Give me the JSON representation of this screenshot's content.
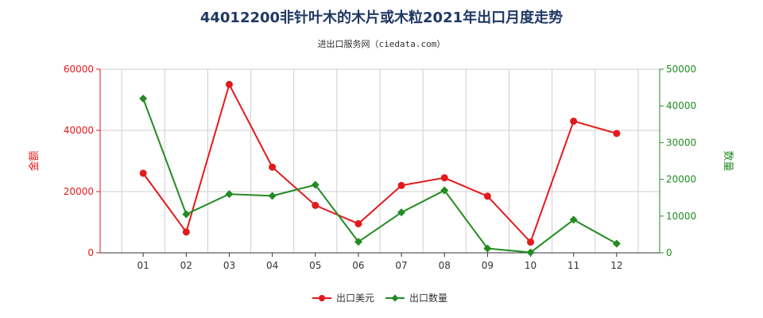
{
  "chart_data": {
    "type": "line",
    "title": "44012200非针叶木的木片或木粒2021年出口月度走势",
    "subtitle": "进出口服务网（ciedata.com）",
    "categories": [
      "01",
      "02",
      "03",
      "04",
      "05",
      "06",
      "07",
      "08",
      "09",
      "10",
      "11",
      "12"
    ],
    "y_left": {
      "label": "金额",
      "ticks": [
        "0",
        "20000",
        "40000",
        "60000"
      ],
      "lim": [
        0,
        60000
      ],
      "color": "#e31a1c"
    },
    "y_right": {
      "label": "数量",
      "ticks": [
        "0",
        "10000",
        "20000",
        "30000",
        "40000",
        "50000"
      ],
      "lim": [
        0,
        50000
      ],
      "color": "#228b22"
    },
    "series": [
      {
        "name": "出口美元",
        "axis": "left",
        "color": "#e31a1c",
        "marker": "circle",
        "values": [
          26000,
          6800,
          55000,
          28000,
          15500,
          9500,
          22000,
          24500,
          18500,
          3500,
          43000,
          39000
        ]
      },
      {
        "name": "出口数量",
        "axis": "right",
        "color": "#228b22",
        "marker": "diamond",
        "values": [
          42000,
          10500,
          16000,
          15500,
          18500,
          3000,
          11000,
          17000,
          1200,
          100,
          9000,
          2500
        ]
      }
    ],
    "grid": true,
    "legend_position": "bottom-center"
  }
}
